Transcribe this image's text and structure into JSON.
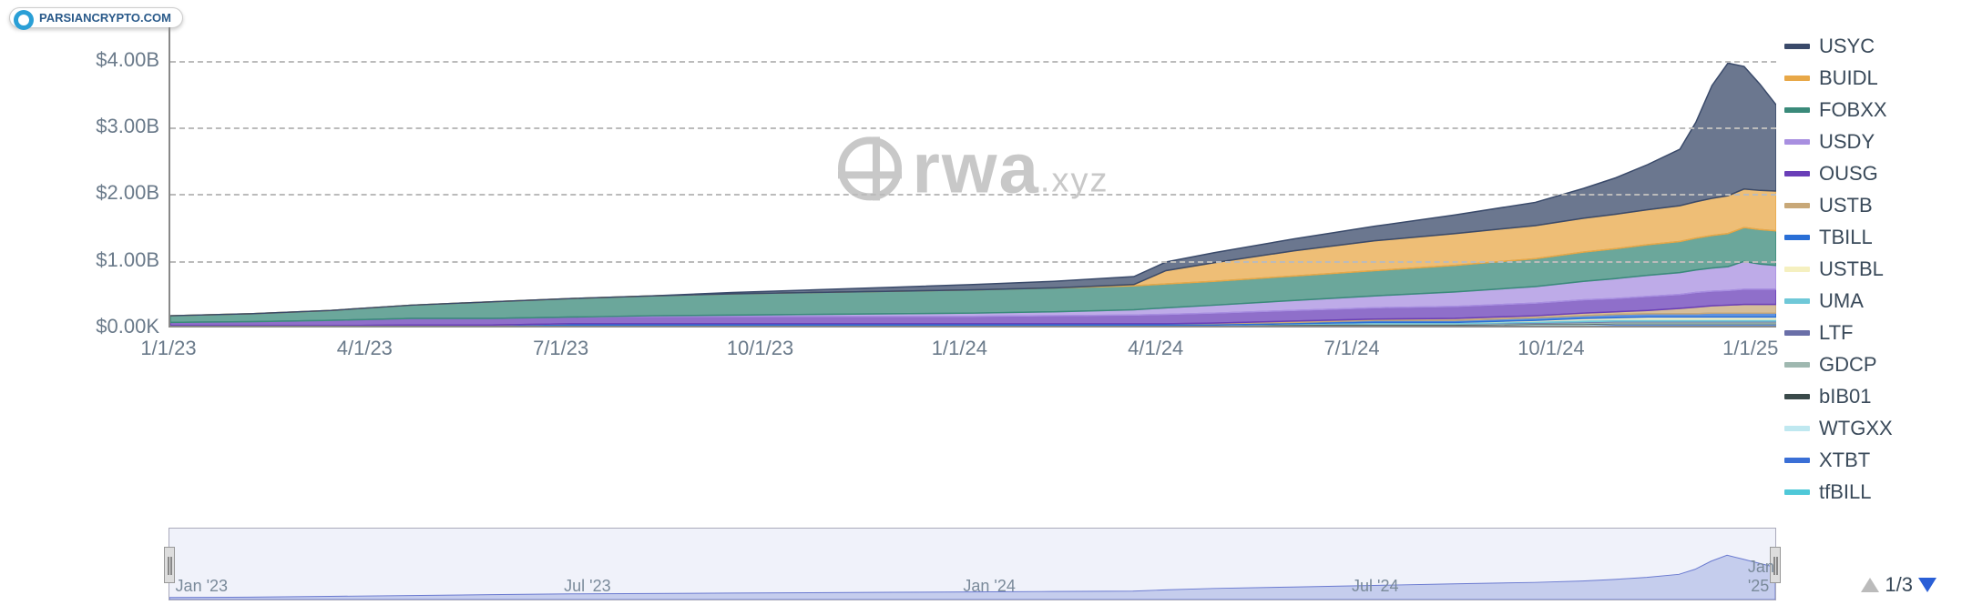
{
  "badge": {
    "text": "PARSIANCRYPTO.COM"
  },
  "watermark": {
    "main": "rwa",
    "sub": ".xyz"
  },
  "chart": {
    "type": "stacked-area",
    "background_color": "#ffffff",
    "grid_color": "#bbbbbb",
    "axis_color": "#888888",
    "label_color": "#6a7a8a",
    "label_fontsize": 22,
    "ylim": [
      0,
      4500000000
    ],
    "yticks": [
      {
        "v": 0,
        "label": "$0.00K"
      },
      {
        "v": 1000000000,
        "label": "$1.00B"
      },
      {
        "v": 2000000000,
        "label": "$2.00B"
      },
      {
        "v": 3000000000,
        "label": "$3.00B"
      },
      {
        "v": 4000000000,
        "label": "$4.00B"
      }
    ],
    "xticks": [
      {
        "t": 0.0,
        "label": "1/1/23"
      },
      {
        "t": 0.122,
        "label": "4/1/23"
      },
      {
        "t": 0.244,
        "label": "7/1/23"
      },
      {
        "t": 0.368,
        "label": "10/1/23"
      },
      {
        "t": 0.492,
        "label": "1/1/24"
      },
      {
        "t": 0.614,
        "label": "4/1/24"
      },
      {
        "t": 0.736,
        "label": "7/1/24"
      },
      {
        "t": 0.86,
        "label": "10/1/24"
      },
      {
        "t": 0.984,
        "label": "1/1/25"
      }
    ],
    "time_samples": [
      0.0,
      0.05,
      0.1,
      0.15,
      0.2,
      0.25,
      0.3,
      0.35,
      0.4,
      0.45,
      0.5,
      0.55,
      0.6,
      0.62,
      0.65,
      0.7,
      0.75,
      0.8,
      0.85,
      0.88,
      0.9,
      0.92,
      0.94,
      0.95,
      0.96,
      0.97,
      0.98,
      0.99,
      1.0
    ],
    "series": [
      {
        "name": "tfBILL",
        "color": "#4fc8d8",
        "values": [
          0.0,
          0.0,
          0.0,
          0.0,
          0.0,
          0.0,
          0.0,
          0.0,
          0.0,
          0.0,
          0.0,
          0.0,
          0.0,
          0.0,
          0.0,
          0.0,
          0.0,
          0.0,
          0.0,
          0.0,
          0.01,
          0.01,
          0.01,
          0.01,
          0.01,
          0.01,
          0.01,
          0.01,
          0.01
        ]
      },
      {
        "name": "XTBT",
        "color": "#3a6fd6",
        "values": [
          0.0,
          0.0,
          0.0,
          0.0,
          0.0,
          0.0,
          0.0,
          0.0,
          0.0,
          0.0,
          0.0,
          0.0,
          0.0,
          0.0,
          0.0,
          0.01,
          0.01,
          0.01,
          0.01,
          0.01,
          0.01,
          0.01,
          0.01,
          0.01,
          0.01,
          0.01,
          0.01,
          0.01,
          0.01
        ]
      },
      {
        "name": "WTGXX",
        "color": "#bfe8f0",
        "values": [
          0.0,
          0.0,
          0.0,
          0.0,
          0.0,
          0.0,
          0.0,
          0.0,
          0.0,
          0.0,
          0.0,
          0.0,
          0.0,
          0.0,
          0.0,
          0.0,
          0.0,
          0.0,
          0.01,
          0.01,
          0.01,
          0.01,
          0.01,
          0.01,
          0.01,
          0.01,
          0.01,
          0.01,
          0.01
        ]
      },
      {
        "name": "bIB01",
        "color": "#3a4a4a",
        "values": [
          0.0,
          0.0,
          0.0,
          0.0,
          0.0,
          0.01,
          0.01,
          0.01,
          0.01,
          0.01,
          0.01,
          0.01,
          0.01,
          0.01,
          0.01,
          0.01,
          0.01,
          0.01,
          0.01,
          0.01,
          0.01,
          0.01,
          0.01,
          0.01,
          0.01,
          0.01,
          0.01,
          0.01,
          0.01
        ]
      },
      {
        "name": "GDCP",
        "color": "#9fb8b0",
        "values": [
          0.0,
          0.0,
          0.0,
          0.0,
          0.0,
          0.0,
          0.0,
          0.0,
          0.0,
          0.0,
          0.0,
          0.0,
          0.0,
          0.0,
          0.0,
          0.0,
          0.01,
          0.01,
          0.01,
          0.02,
          0.02,
          0.02,
          0.02,
          0.02,
          0.02,
          0.02,
          0.02,
          0.02,
          0.02
        ]
      },
      {
        "name": "LTF",
        "color": "#6a6fa8",
        "values": [
          0.0,
          0.0,
          0.0,
          0.0,
          0.0,
          0.0,
          0.0,
          0.0,
          0.0,
          0.0,
          0.0,
          0.0,
          0.0,
          0.0,
          0.0,
          0.0,
          0.0,
          0.0,
          0.01,
          0.01,
          0.01,
          0.01,
          0.01,
          0.01,
          0.01,
          0.01,
          0.01,
          0.01,
          0.01
        ]
      },
      {
        "name": "UMA",
        "color": "#6fc8d8",
        "values": [
          0.0,
          0.0,
          0.0,
          0.0,
          0.0,
          0.0,
          0.0,
          0.0,
          0.0,
          0.0,
          0.0,
          0.0,
          0.0,
          0.0,
          0.0,
          0.01,
          0.02,
          0.02,
          0.02,
          0.03,
          0.03,
          0.03,
          0.03,
          0.03,
          0.03,
          0.03,
          0.03,
          0.03,
          0.03
        ]
      },
      {
        "name": "USTBL",
        "color": "#f5f0c0",
        "values": [
          0.0,
          0.0,
          0.0,
          0.0,
          0.0,
          0.0,
          0.0,
          0.0,
          0.0,
          0.0,
          0.0,
          0.0,
          0.0,
          0.0,
          0.0,
          0.0,
          0.0,
          0.0,
          0.01,
          0.02,
          0.02,
          0.03,
          0.03,
          0.03,
          0.03,
          0.03,
          0.03,
          0.03,
          0.03
        ]
      },
      {
        "name": "TBILL",
        "color": "#2a6fd6",
        "values": [
          0.0,
          0.0,
          0.0,
          0.01,
          0.01,
          0.02,
          0.02,
          0.02,
          0.02,
          0.02,
          0.02,
          0.02,
          0.02,
          0.02,
          0.02,
          0.02,
          0.03,
          0.03,
          0.04,
          0.04,
          0.05,
          0.05,
          0.05,
          0.05,
          0.06,
          0.06,
          0.06,
          0.06,
          0.06
        ]
      },
      {
        "name": "USTB",
        "color": "#c8a878",
        "values": [
          0.0,
          0.0,
          0.0,
          0.0,
          0.0,
          0.0,
          0.0,
          0.0,
          0.0,
          0.0,
          0.0,
          0.0,
          0.0,
          0.0,
          0.01,
          0.02,
          0.02,
          0.03,
          0.03,
          0.04,
          0.04,
          0.05,
          0.08,
          0.1,
          0.11,
          0.12,
          0.13,
          0.13,
          0.13
        ]
      },
      {
        "name": "OUSG",
        "color": "#6a3fb8",
        "values": [
          0.05,
          0.06,
          0.08,
          0.1,
          0.1,
          0.1,
          0.11,
          0.11,
          0.11,
          0.11,
          0.11,
          0.12,
          0.13,
          0.14,
          0.15,
          0.16,
          0.17,
          0.18,
          0.19,
          0.2,
          0.2,
          0.21,
          0.21,
          0.22,
          0.22,
          0.22,
          0.23,
          0.23,
          0.23
        ]
      },
      {
        "name": "USDY",
        "color": "#a88fe0",
        "values": [
          0.0,
          0.0,
          0.0,
          0.0,
          0.0,
          0.0,
          0.01,
          0.02,
          0.03,
          0.04,
          0.05,
          0.06,
          0.08,
          0.1,
          0.12,
          0.15,
          0.18,
          0.22,
          0.25,
          0.28,
          0.3,
          0.32,
          0.33,
          0.34,
          0.35,
          0.36,
          0.42,
          0.38,
          0.36
        ]
      },
      {
        "name": "FOBXX",
        "color": "#3a8a7a",
        "values": [
          0.1,
          0.12,
          0.15,
          0.2,
          0.25,
          0.28,
          0.3,
          0.32,
          0.33,
          0.34,
          0.35,
          0.36,
          0.36,
          0.36,
          0.36,
          0.37,
          0.38,
          0.4,
          0.42,
          0.44,
          0.45,
          0.46,
          0.47,
          0.48,
          0.49,
          0.5,
          0.51,
          0.52,
          0.52
        ]
      },
      {
        "name": "BUIDL",
        "color": "#e8a848",
        "values": [
          0.0,
          0.0,
          0.0,
          0.0,
          0.0,
          0.0,
          0.0,
          0.0,
          0.0,
          0.0,
          0.0,
          0.0,
          0.02,
          0.2,
          0.28,
          0.38,
          0.45,
          0.48,
          0.5,
          0.51,
          0.52,
          0.53,
          0.54,
          0.55,
          0.56,
          0.57,
          0.58,
          0.59,
          0.6
        ]
      },
      {
        "name": "USYC",
        "color": "#3a4a6a",
        "values": [
          0.0,
          0.0,
          0.0,
          0.0,
          0.0,
          0.0,
          0.0,
          0.02,
          0.04,
          0.06,
          0.08,
          0.1,
          0.12,
          0.13,
          0.15,
          0.18,
          0.22,
          0.28,
          0.35,
          0.45,
          0.55,
          0.68,
          0.85,
          1.2,
          1.7,
          2.0,
          1.85,
          1.6,
          1.3
        ]
      }
    ]
  },
  "legend": {
    "items": [
      {
        "label": "USYC",
        "color": "#3a4a6a"
      },
      {
        "label": "BUIDL",
        "color": "#e8a848"
      },
      {
        "label": "FOBXX",
        "color": "#3a8a7a"
      },
      {
        "label": "USDY",
        "color": "#a88fe0"
      },
      {
        "label": "OUSG",
        "color": "#6a3fb8"
      },
      {
        "label": "USTB",
        "color": "#c8a878"
      },
      {
        "label": "TBILL",
        "color": "#2a6fd6"
      },
      {
        "label": "USTBL",
        "color": "#f5f0c0"
      },
      {
        "label": "UMA",
        "color": "#6fc8d8"
      },
      {
        "label": "LTF",
        "color": "#6a6fa8"
      },
      {
        "label": "GDCP",
        "color": "#9fb8b0"
      },
      {
        "label": "bIB01",
        "color": "#3a4a4a"
      },
      {
        "label": "WTGXX",
        "color": "#bfe8f0"
      },
      {
        "label": "XTBT",
        "color": "#3a6fd6"
      },
      {
        "label": "tfBILL",
        "color": "#4fc8d8"
      }
    ],
    "pager": {
      "current": 1,
      "total": 3,
      "text": "1/3"
    }
  },
  "navigator": {
    "fill_color": "#9aa8e0",
    "border_color": "#aabbcc",
    "ticks": [
      {
        "t": 0.02,
        "label": "Jan '23"
      },
      {
        "t": 0.26,
        "label": "Jul '23"
      },
      {
        "t": 0.51,
        "label": "Jan '24"
      },
      {
        "t": 0.75,
        "label": "Jul '24"
      },
      {
        "t": 0.99,
        "label": "Jan '25"
      }
    ],
    "profile": [
      0.1,
      0.12,
      0.16,
      0.2,
      0.24,
      0.28,
      0.3,
      0.32,
      0.34,
      0.36,
      0.38,
      0.4,
      0.42,
      0.48,
      0.55,
      0.62,
      0.7,
      0.78,
      0.85,
      0.92,
      1.0,
      1.1,
      1.25,
      1.5,
      1.9,
      2.2,
      2.0,
      1.8,
      1.6
    ]
  }
}
